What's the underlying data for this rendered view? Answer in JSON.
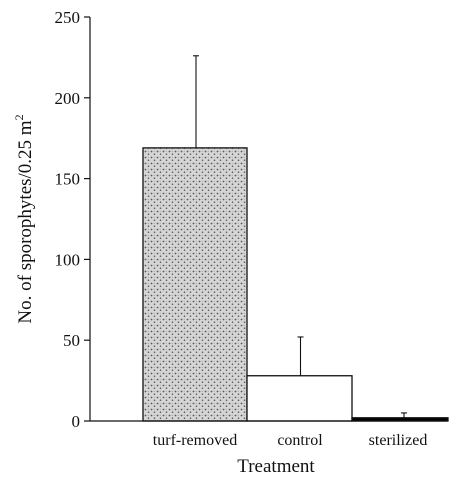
{
  "chart_data": {
    "type": "bar",
    "categories": [
      "turf-removed",
      "control",
      "sterilized"
    ],
    "values": [
      169,
      28,
      2
    ],
    "error_upper": [
      226,
      52,
      5
    ],
    "xlabel": "Treatment",
    "ylabel": "No. of sporophytes/0.25 m",
    "ylabel_superscript": "2",
    "ylim": [
      0,
      250
    ],
    "yticks": [
      0,
      50,
      100,
      150,
      200,
      250
    ],
    "grid": false,
    "bar_fills": [
      "stippled",
      "white",
      "black"
    ],
    "colors": {
      "stipple_base": "#d6d6d6",
      "stipple_dot": "#5a5a5a",
      "bar_edge": "#111111",
      "solid_bar": "#000000"
    }
  }
}
